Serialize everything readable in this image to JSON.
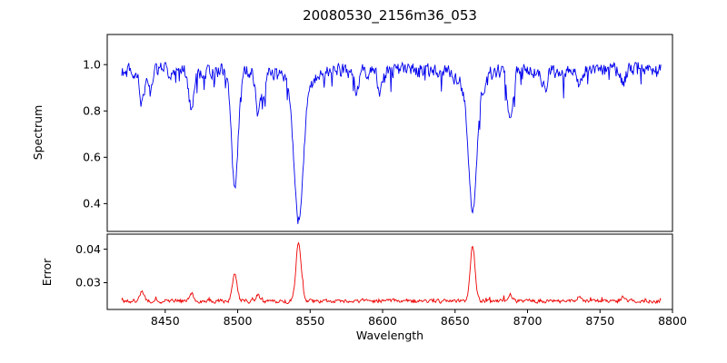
{
  "figure": {
    "background": "#ffffff",
    "text_color": "#000000"
  },
  "chart_data": {
    "type": "line",
    "title": "20080530_2156m36_053",
    "xlabel": "Wavelength",
    "legend": "none",
    "grid": "off",
    "x_axis": {
      "lim": [
        8410,
        8800
      ],
      "ticks": [
        8450,
        8500,
        8550,
        8600,
        8650,
        8700,
        8750,
        8800
      ],
      "data_range": [
        8420,
        8792
      ]
    },
    "panels": [
      {
        "name": "spectrum",
        "ylabel": "Spectrum",
        "line_color": "#0000ee",
        "ylim": [
          0.28,
          1.13
        ],
        "y_ticks": [
          "0.4",
          "0.6",
          "0.8",
          "1.0"
        ],
        "continuum": 0.975,
        "noise_amplitude": 0.04,
        "absorption_forest": {
          "boundary": 8560,
          "prob_left": 0.1,
          "prob_right": 0.05,
          "max_extra_depth": 0.09
        },
        "absorption_lines": [
          {
            "center": 8434.0,
            "depth": 0.15,
            "width": 1.6
          },
          {
            "center": 8440.0,
            "depth": 0.1,
            "width": 1.3
          },
          {
            "center": 8468.0,
            "depth": 0.17,
            "width": 1.7
          },
          {
            "center": 8498.0,
            "depth": 0.52,
            "width": 2.3
          },
          {
            "center": 8514.0,
            "depth": 0.19,
            "width": 1.6
          },
          {
            "center": 8518.0,
            "depth": 0.13,
            "width": 1.3
          },
          {
            "center": 8542.1,
            "depth": 0.55,
            "width": 3.0
          },
          {
            "center": 8542.1,
            "depth": 0.11,
            "width": 7.5
          },
          {
            "center": 8582.0,
            "depth": 0.09,
            "width": 1.5
          },
          {
            "center": 8598.0,
            "depth": 0.1,
            "width": 1.5
          },
          {
            "center": 8662.1,
            "depth": 0.5,
            "width": 2.7
          },
          {
            "center": 8662.1,
            "depth": 0.12,
            "width": 6.5
          },
          {
            "center": 8688.0,
            "depth": 0.22,
            "width": 2.0
          },
          {
            "center": 8712.0,
            "depth": 0.08,
            "width": 1.5
          },
          {
            "center": 8736.0,
            "depth": 0.07,
            "width": 1.3
          },
          {
            "center": 8766.0,
            "depth": 0.06,
            "width": 1.3
          }
        ]
      },
      {
        "name": "error",
        "ylabel": "Error",
        "line_color": "#ee0000",
        "ylim": [
          0.022,
          0.0445
        ],
        "y_ticks": [
          "0.03",
          "0.04"
        ],
        "baseline": 0.0245,
        "noise_amplitude": 0.0007,
        "spike_probability": 0.05,
        "spike_max": 0.0012,
        "peaks": [
          {
            "center": 8434.0,
            "height": 0.003,
            "width": 1.3
          },
          {
            "center": 8468.0,
            "height": 0.0025,
            "width": 1.3
          },
          {
            "center": 8498.0,
            "height": 0.0085,
            "width": 1.6
          },
          {
            "center": 8514.0,
            "height": 0.002,
            "width": 1.3
          },
          {
            "center": 8542.1,
            "height": 0.0175,
            "width": 1.8
          },
          {
            "center": 8662.1,
            "height": 0.0165,
            "width": 1.7
          },
          {
            "center": 8688.0,
            "height": 0.0025,
            "width": 1.4
          },
          {
            "center": 8736.0,
            "height": 0.0015,
            "width": 1.2
          },
          {
            "center": 8766.0,
            "height": 0.0015,
            "width": 1.2
          }
        ]
      }
    ]
  }
}
